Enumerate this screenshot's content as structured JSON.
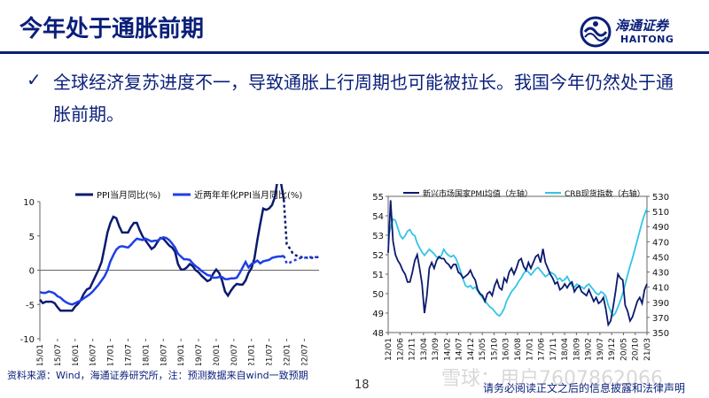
{
  "header": {
    "title": "今年处于通胀前期",
    "logo_cn": "海通证券",
    "logo_en": "HAITONG"
  },
  "bullet": {
    "symbol": "✓",
    "text": "全球经济复苏进度不一，导致通胀上行周期也可能被拉长。我国今年仍然处于通胀前期。"
  },
  "chart_data": [
    {
      "type": "line",
      "title": "",
      "legend": {
        "placement": "top",
        "entries": [
          "PPI当月同比(%)",
          "近两年年化PPI当月同比(%)"
        ]
      },
      "ylim": [
        -10,
        10
      ],
      "yticks": [
        -10,
        -5,
        0,
        5,
        10
      ],
      "xticks": [
        "15/01",
        "15/07",
        "16/01",
        "16/07",
        "17/01",
        "17/07",
        "18/01",
        "18/07",
        "19/01",
        "19/07",
        "20/01",
        "20/07",
        "21/01",
        "21/07",
        "22/01",
        "22/07"
      ],
      "colors": {
        "ppi": "#0a1a6e",
        "ppi_2y": "#1f3fe6"
      },
      "series": [
        {
          "name": "PPI当月同比(%)",
          "color": "#0a1a6e",
          "values": [
            -4.3,
            -4.8,
            -4.6,
            -4.6,
            -4.6,
            -4.8,
            -5.4,
            -5.9,
            -5.9,
            -5.9,
            -5.9,
            -5.9,
            -5.3,
            -4.9,
            -4.3,
            -3.4,
            -2.8,
            -2.6,
            -1.7,
            -0.8,
            0.1,
            1.2,
            3.3,
            5.5,
            6.9,
            7.8,
            7.6,
            6.4,
            5.5,
            5.5,
            5.5,
            6.3,
            6.9,
            6.9,
            5.8,
            4.9,
            4.3,
            3.7,
            3.1,
            3.4,
            4.1,
            4.7,
            4.6,
            4.1,
            3.6,
            3.3,
            2.7,
            0.9,
            0.1,
            0.1,
            0.4,
            0.9,
            0.6,
            0.0,
            -0.3,
            -0.8,
            -1.2,
            -1.6,
            -1.4,
            -0.5,
            0.1,
            -0.4,
            -1.5,
            -3.1,
            -3.7,
            -3.0,
            -2.4,
            -2.0,
            -2.1,
            -2.1,
            -1.5,
            -0.4,
            0.3,
            1.7,
            4.4,
            6.8,
            9.0,
            8.8,
            9.0,
            9.5,
            10.7,
            13.5,
            12.9,
            10.3
          ],
          "forecast": [
            3.8,
            3.2,
            2.5,
            2.2,
            2.0,
            1.9,
            1.9,
            1.8,
            1.8,
            1.8,
            1.9,
            1.9
          ]
        },
        {
          "name": "近两年年化PPI当月同比(%)",
          "color": "#1f3fe6",
          "values": [
            -3.2,
            -3.3,
            -3.3,
            -3.1,
            -3.2,
            -3.4,
            -3.8,
            -4.0,
            -4.4,
            -4.7,
            -4.9,
            -5.0,
            -4.8,
            -4.6,
            -4.4,
            -4.1,
            -3.8,
            -3.5,
            -3.1,
            -2.6,
            -2.1,
            -1.5,
            -0.9,
            0.0,
            1.3,
            2.2,
            3.0,
            3.4,
            3.5,
            3.4,
            3.3,
            3.7,
            4.2,
            4.6,
            4.5,
            4.4,
            4.6,
            4.4,
            4.2,
            4.3,
            4.3,
            4.6,
            4.8,
            4.7,
            4.4,
            3.9,
            3.3,
            2.4,
            2.0,
            1.6,
            1.6,
            1.5,
            1.0,
            0.6,
            0.3,
            -0.1,
            -0.4,
            -0.7,
            -0.8,
            -1.1,
            -1.1,
            -1.0,
            -1.0,
            -1.3,
            -1.3,
            -1.2,
            -1.2,
            -1.1,
            -0.4,
            0.4,
            1.2,
            0.4,
            0.9,
            1.1,
            1.4,
            1.0,
            1.3,
            1.4,
            1.5,
            1.8,
            1.9,
            2.0,
            2.0,
            2.1
          ],
          "forecast": [
            1.0,
            1.1,
            1.3,
            1.5,
            1.7,
            1.8,
            1.8,
            1.9,
            1.9,
            1.9,
            1.9,
            1.9
          ]
        }
      ]
    },
    {
      "type": "line",
      "title": "",
      "legend": {
        "placement": "top",
        "entries": [
          "新兴市场国家PMI均值（左轴）",
          "CRB现货指数（右轴）"
        ]
      },
      "ylim_left": [
        48,
        55
      ],
      "yticks_left": [
        48,
        49,
        50,
        51,
        52,
        53,
        54,
        55
      ],
      "ylim_right": [
        350,
        530
      ],
      "yticks_right": [
        350,
        370,
        390,
        410,
        430,
        450,
        470,
        490,
        510,
        530
      ],
      "xticks": [
        "12/01",
        "12/06",
        "12/11",
        "13/04",
        "13/09",
        "14/02",
        "14/07",
        "14/12",
        "15/05",
        "15/10",
        "16/03",
        "16/08",
        "17/01",
        "17/06",
        "17/11",
        "18/04",
        "18/09",
        "19/02",
        "19/07",
        "19/12",
        "20/05",
        "20/10",
        "21/03"
      ],
      "colors": {
        "pmi": "#0a1a6e",
        "crb": "#33c4e8"
      },
      "series": [
        {
          "name": "新兴市场国家PMI均值（左轴）",
          "axis": "left",
          "color": "#0a1a6e",
          "values": [
            52.1,
            54.8,
            52.7,
            52.0,
            51.7,
            51.5,
            51.2,
            51.0,
            50.6,
            50.6,
            51.1,
            51.7,
            52.0,
            51.3,
            50.5,
            49.0,
            49.9,
            51.3,
            51.6,
            51.3,
            51.7,
            51.9,
            51.8,
            51.8,
            51.6,
            51.5,
            51.3,
            51.5,
            51.5,
            51.1,
            51.0,
            50.8,
            50.9,
            51.0,
            51.2,
            50.9,
            50.7,
            50.2,
            50.0,
            49.9,
            49.6,
            50.0,
            50.1,
            49.9,
            50.4,
            50.7,
            50.3,
            50.2,
            50.8,
            50.6,
            51.1,
            51.3,
            51.0,
            51.3,
            51.7,
            51.8,
            51.4,
            51.2,
            51.6,
            51.3,
            51.6,
            51.9,
            52.0,
            51.6,
            52.3,
            51.6,
            51.3,
            51.0,
            50.8,
            50.5,
            50.6,
            50.2,
            50.3,
            50.5,
            50.3,
            50.5,
            50.6,
            50.1,
            50.3,
            50.4,
            50.1,
            50.0,
            49.9,
            50.2,
            49.9,
            49.6,
            49.8,
            49.5,
            49.6,
            49.8,
            49.2,
            48.4,
            48.6,
            49.3,
            50.1,
            51.0,
            50.8,
            50.7,
            49.4,
            49.1,
            48.6,
            48.8,
            49.2,
            49.6,
            49.8,
            49.5,
            50.2,
            50.5
          ],
          "comment": "approx monthly values read off chart"
        },
        {
          "name": "CRB现货指数（右轴）",
          "axis": "right",
          "color": "#33c4e8",
          "values": [
            475,
            488,
            500,
            498,
            488,
            478,
            474,
            478,
            484,
            486,
            480,
            478,
            468,
            462,
            456,
            452,
            456,
            460,
            457,
            454,
            450,
            448,
            452,
            460,
            455,
            452,
            450,
            452,
            448,
            440,
            430,
            420,
            412,
            410,
            412,
            408,
            410,
            405,
            400,
            396,
            392,
            388,
            384,
            382,
            378,
            374,
            372,
            376,
            382,
            392,
            398,
            404,
            408,
            412,
            418,
            422,
            428,
            432,
            430,
            426,
            430,
            434,
            436,
            432,
            428,
            424,
            426,
            430,
            428,
            426,
            420,
            422,
            418,
            420,
            424,
            418,
            412,
            410,
            414,
            412,
            410,
            408,
            412,
            414,
            410,
            406,
            402,
            400,
            404,
            402,
            398,
            386,
            378,
            372,
            376,
            384,
            392,
            402,
            414,
            426,
            438,
            448,
            460,
            472,
            484,
            496,
            506,
            514
          ],
          "comment": "approx monthly values read off chart"
        }
      ]
    }
  ],
  "footer": {
    "source": "资料来源：Wind，海通证券研究所，注：预测数据来自wind一致预期",
    "page": "18",
    "watermark": "雪球：用户7607862066",
    "disclaimer": "请务必阅读正文之后的信息披露和法律声明"
  }
}
